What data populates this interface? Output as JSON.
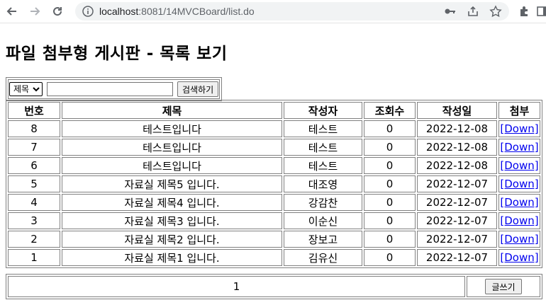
{
  "browser": {
    "url_host": "localhost",
    "url_path": ":8081/14MVCBoard/list.do"
  },
  "page": {
    "title": "파일 첨부형 게시판 - 목록 보기"
  },
  "search": {
    "selected_field": "제목",
    "options": [
      "제목"
    ],
    "query": "",
    "button_label": "검색하기"
  },
  "table": {
    "headers": [
      "번호",
      "제목",
      "작성자",
      "조회수",
      "작성일",
      "첨부"
    ],
    "rows": [
      {
        "num": "8",
        "title": "테스트입니다",
        "author": "테스트",
        "views": "0",
        "date": "2022-12-08",
        "attach": "[Down]"
      },
      {
        "num": "7",
        "title": "테스트입니다",
        "author": "테스트",
        "views": "0",
        "date": "2022-12-08",
        "attach": "[Down]"
      },
      {
        "num": "6",
        "title": "테스트입니다",
        "author": "테스트",
        "views": "0",
        "date": "2022-12-08",
        "attach": "[Down]"
      },
      {
        "num": "5",
        "title": "자료실 제목5 입니다.",
        "author": "대조영",
        "views": "0",
        "date": "2022-12-07",
        "attach": "[Down]"
      },
      {
        "num": "4",
        "title": "자료실 제목4 입니다.",
        "author": "강감찬",
        "views": "0",
        "date": "2022-12-07",
        "attach": "[Down]"
      },
      {
        "num": "3",
        "title": "자료실 제목3 입니다.",
        "author": "이순신",
        "views": "0",
        "date": "2022-12-07",
        "attach": "[Down]"
      },
      {
        "num": "2",
        "title": "자료실 제목2 입니다.",
        "author": "장보고",
        "views": "0",
        "date": "2022-12-07",
        "attach": "[Down]"
      },
      {
        "num": "1",
        "title": "자료실 제목1 입니다.",
        "author": "김유신",
        "views": "0",
        "date": "2022-12-07",
        "attach": "[Down]"
      }
    ]
  },
  "footer": {
    "page": "1",
    "write_label": "글쓰기"
  }
}
